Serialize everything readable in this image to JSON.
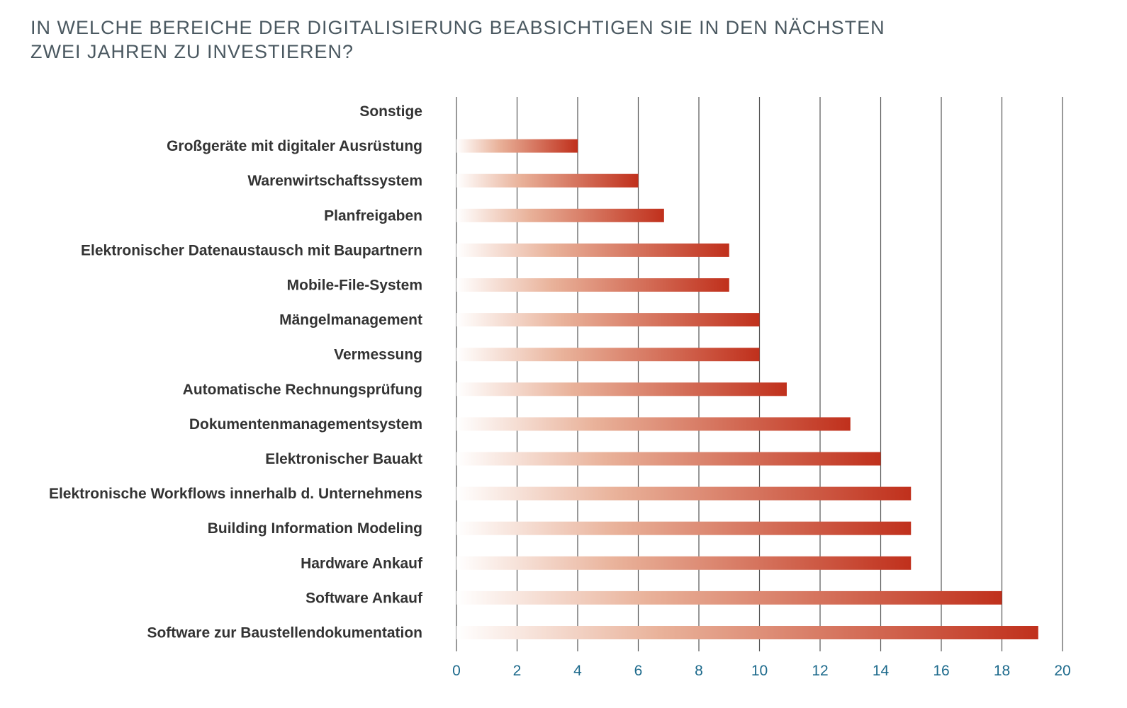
{
  "title": {
    "line1": "IN WELCHE BEREICHE DER DIGITALISIERUNG BEABSICHTIGEN SIE IN DEN NÄCHSTEN",
    "line2": "ZWEI JAHREN ZU INVESTIEREN?"
  },
  "colors": {
    "title": "#4a5860",
    "label": "#333333",
    "tick": "#1d6a8c",
    "grid": "#555555",
    "bar_start": "#ffffff",
    "bar_end": "#c0301c"
  },
  "chart_data": {
    "type": "bar",
    "orientation": "horizontal",
    "title": "IN WELCHE BEREICHE DER DIGITALISIERUNG BEABSICHTIGEN SIE IN DEN NÄCHSTEN ZWEI JAHREN ZU INVESTIEREN?",
    "xlabel": "",
    "ylabel": "",
    "xlim": [
      0,
      20
    ],
    "ticks": [
      "0",
      "2",
      "4",
      "6",
      "8",
      "10",
      "12",
      "14",
      "16",
      "18",
      "20"
    ],
    "grid": true,
    "categories": [
      "Sonstige",
      "Großgeräte mit digitaler Ausrüstung",
      "Warenwirtschaftssystem",
      "Planfreigaben",
      "Elektronischer Datenaustausch mit Baupartnern",
      "Mobile-File-System",
      "Mängelmanagement",
      "Vermessung",
      "Automatische Rechnungsprüfung",
      "Dokumentenmanagementsystem",
      "Elektronischer Bauakt",
      "Elektronische Workflows innerhalb d. Unternehmens",
      "Building Information Modeling",
      "Hardware Ankauf",
      "Software Ankauf",
      "Software zur Baustellendokumentation"
    ],
    "values": [
      0,
      4,
      6,
      6.85,
      9,
      9,
      10,
      10,
      10.9,
      13,
      14,
      15,
      15,
      15,
      18,
      19.2
    ]
  }
}
